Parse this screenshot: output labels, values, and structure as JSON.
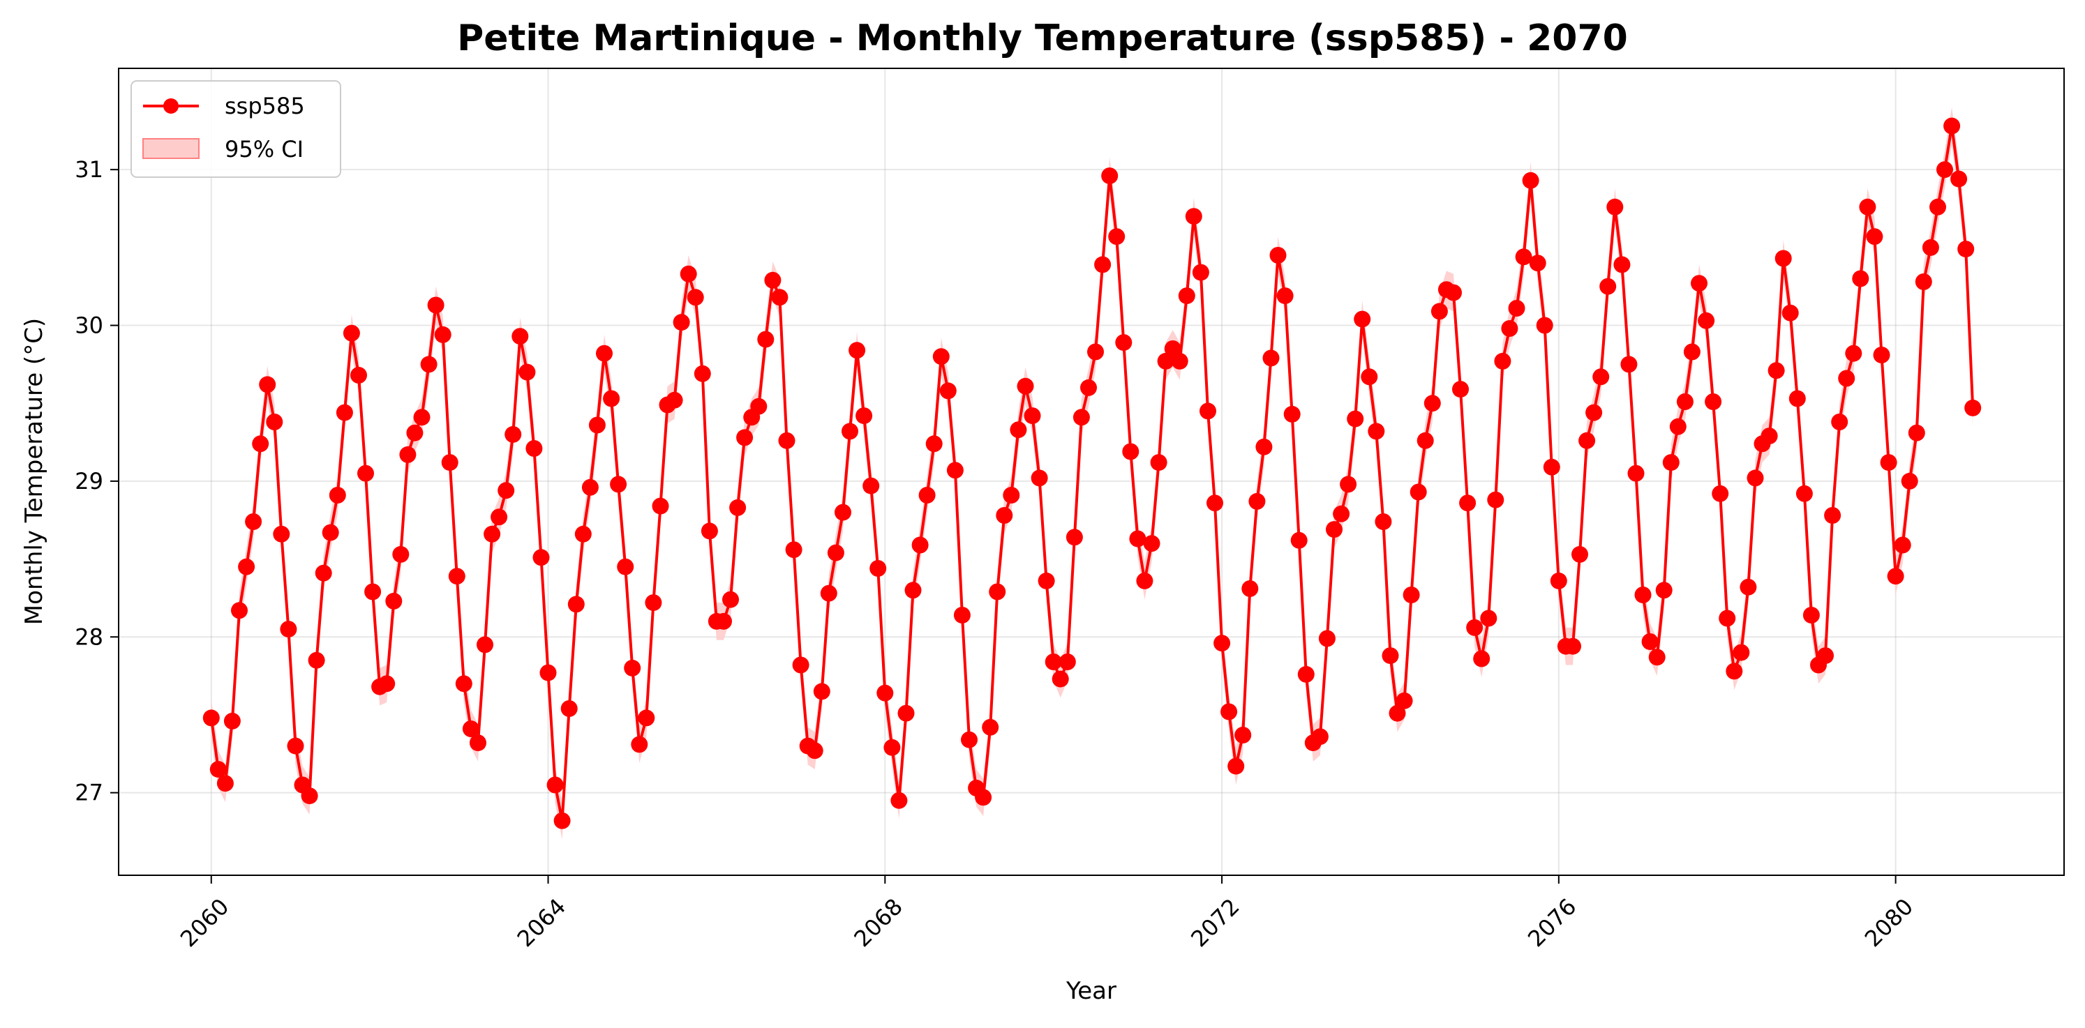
{
  "chart_data": {
    "type": "line",
    "title": "Petite Martinique - Monthly Temperature (ssp585) - 2070",
    "xlabel": "Year",
    "ylabel": "Monthly Temperature (°C)",
    "x_ticks": [
      "2060",
      "2064",
      "2068",
      "2072",
      "2076",
      "2080"
    ],
    "y_ticks": [
      "27",
      "28",
      "29",
      "30",
      "31"
    ],
    "xlim": [
      2058.9,
      2082.0
    ],
    "ylim": [
      26.47,
      31.65
    ],
    "grid": true,
    "legend_placement": "top-left",
    "x_start": "2060-01",
    "x_frequency": "monthly",
    "series": [
      {
        "name": "ssp585",
        "color": "#ff0000",
        "marker": "circle",
        "values": [
          27.48,
          27.15,
          27.06,
          27.46,
          28.17,
          28.45,
          28.74,
          29.24,
          29.62,
          29.38,
          28.66,
          28.05,
          27.3,
          27.05,
          26.98,
          27.85,
          28.41,
          28.67,
          28.91,
          29.44,
          29.95,
          29.68,
          29.05,
          28.29,
          27.68,
          27.7,
          28.23,
          28.53,
          29.17,
          29.31,
          29.41,
          29.75,
          30.13,
          29.94,
          29.12,
          28.39,
          27.7,
          27.41,
          27.32,
          27.95,
          28.66,
          28.77,
          28.94,
          29.3,
          29.93,
          29.7,
          29.21,
          28.51,
          27.77,
          27.05,
          26.82,
          27.54,
          28.21,
          28.66,
          28.96,
          29.36,
          29.82,
          29.53,
          28.98,
          28.45,
          27.8,
          27.31,
          27.48,
          28.22,
          28.84,
          29.49,
          29.52,
          30.02,
          30.33,
          30.18,
          29.69,
          28.68,
          28.1,
          28.1,
          28.24,
          28.83,
          29.28,
          29.41,
          29.48,
          29.91,
          30.29,
          30.18,
          29.26,
          28.56,
          27.82,
          27.3,
          27.27,
          27.65,
          28.28,
          28.54,
          28.8,
          29.32,
          29.84,
          29.42,
          28.97,
          28.44,
          27.64,
          27.29,
          26.95,
          27.51,
          28.3,
          28.59,
          28.91,
          29.24,
          29.8,
          29.58,
          29.07,
          28.14,
          27.34,
          27.03,
          26.97,
          27.42,
          28.29,
          28.78,
          28.91,
          29.33,
          29.61,
          29.42,
          29.02,
          28.36,
          27.84,
          27.73,
          27.84,
          28.64,
          29.41,
          29.6,
          29.83,
          30.39,
          30.96,
          30.57,
          29.89,
          29.19,
          28.63,
          28.36,
          28.6,
          29.12,
          29.77,
          29.85,
          29.77,
          30.19,
          30.7,
          30.34,
          29.45,
          28.86,
          27.96,
          27.52,
          27.17,
          27.37,
          28.31,
          28.87,
          29.22,
          29.79,
          30.45,
          30.19,
          29.43,
          28.62,
          27.76,
          27.32,
          27.36,
          27.99,
          28.69,
          28.79,
          28.98,
          29.4,
          30.04,
          29.67,
          29.32,
          28.74,
          27.88,
          27.51,
          27.59,
          28.27,
          28.93,
          29.26,
          29.5,
          30.09,
          30.23,
          30.21,
          29.59,
          28.86,
          28.06,
          27.86,
          28.12,
          28.88,
          29.77,
          29.98,
          30.11,
          30.44,
          30.93,
          30.4,
          30.0,
          29.09,
          28.36,
          27.94,
          27.94,
          28.53,
          29.26,
          29.44,
          29.67,
          30.25,
          30.76,
          30.39,
          29.75,
          29.05,
          28.27,
          27.97,
          27.87,
          28.3,
          29.12,
          29.35,
          29.51,
          29.83,
          30.27,
          30.03,
          29.51,
          28.92,
          28.12,
          27.78,
          27.9,
          28.32,
          29.02,
          29.24,
          29.29,
          29.71,
          30.43,
          30.08,
          29.53,
          28.92,
          28.14,
          27.82,
          27.88,
          28.78,
          29.38,
          29.66,
          29.82,
          30.3,
          30.76,
          30.57,
          29.81,
          29.12,
          28.39,
          28.59,
          29.0,
          29.31,
          30.28,
          30.5,
          30.76,
          31.0,
          31.28,
          30.94,
          30.49,
          29.47
        ]
      }
    ],
    "confidence_band": {
      "name": "95% CI",
      "half_width": 0.12,
      "color": "#ffcccc"
    }
  }
}
